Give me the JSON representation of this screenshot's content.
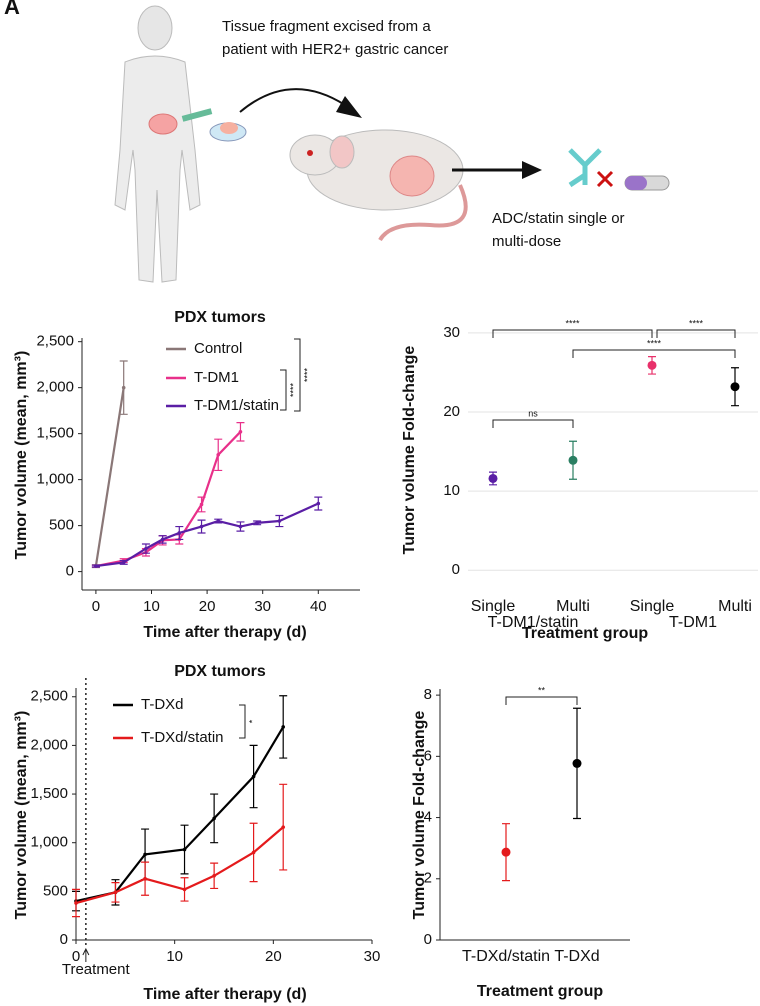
{
  "panel_label": "A",
  "illustration": {
    "caption_top": [
      "Tissue fragment excised from a",
      "patient with HER2+ gastric cancer"
    ],
    "caption_bottom": [
      "ADC/statin single or",
      "multi-dose"
    ]
  },
  "chart_data": [
    {
      "type": "line",
      "title": "PDX tumors",
      "x_label": "Time after therapy (d)",
      "y_label": "Tumor volume (mean, mm³)",
      "xlim": [
        -2.5,
        47.5
      ],
      "ylim": [
        -200,
        2540
      ],
      "xticks": [
        0,
        10,
        20,
        30,
        40
      ],
      "yticks": [
        0,
        500,
        {
          "value": 1000,
          "label": "1,000"
        },
        {
          "value": 1500,
          "label": "1,500"
        },
        {
          "value": 2000,
          "label": "2,000"
        },
        {
          "value": 2500,
          "label": "2,500"
        }
      ],
      "series": [
        {
          "name": "Control",
          "color": "#8a7777",
          "x": [
            0,
            5
          ],
          "values": [
            60,
            2000
          ],
          "errors": [
            15,
            290
          ]
        },
        {
          "name": "T-DM1",
          "color": "#e8308a",
          "x": [
            0,
            5,
            9,
            12,
            15,
            19,
            22,
            26
          ],
          "values": [
            60,
            120,
            210,
            340,
            350,
            730,
            1270,
            1520
          ],
          "errors": [
            10,
            20,
            40,
            50,
            50,
            80,
            170,
            100
          ]
        },
        {
          "name": "T-DM1/statin",
          "color": "#5a1ea5",
          "x": [
            0,
            5,
            9,
            12,
            15,
            19,
            22,
            26,
            29,
            33,
            40
          ],
          "values": [
            60,
            100,
            250,
            350,
            420,
            490,
            550,
            490,
            530,
            550,
            740
          ],
          "errors": [
            10,
            20,
            50,
            40,
            70,
            70,
            20,
            50,
            20,
            60,
            70
          ]
        }
      ],
      "annotations": [
        "****",
        "****"
      ]
    },
    {
      "type": "point",
      "x_label": "Treatment group",
      "y_label": "Tumor volume Fold-change",
      "categories": [
        "Single",
        "Multi",
        "Single",
        "Multi"
      ],
      "groups": [
        "T-DM1/statin",
        "T-DM1"
      ],
      "values": [
        11.6,
        13.9,
        25.9,
        23.2
      ],
      "errors": [
        0.8,
        2.4,
        1.1,
        2.4
      ],
      "colors": [
        "#5a1ea5",
        "#2a7f62",
        "#e8306a",
        "#000000"
      ],
      "ylim": [
        -2.5,
        31
      ],
      "yticks": [
        0,
        10,
        20,
        30
      ],
      "grid": true,
      "annotations": [
        "****",
        "****",
        "****",
        "ns"
      ]
    },
    {
      "type": "line",
      "title": "PDX tumors",
      "x_label": "Time after therapy (d)",
      "y_label": "Tumor volume (mean, mm³)",
      "xlim": [
        0,
        30
      ],
      "ylim": [
        0,
        2590
      ],
      "xticks": [
        0,
        10,
        20,
        30
      ],
      "yticks": [
        0,
        500,
        {
          "value": 1000,
          "label": "1,000"
        },
        {
          "value": 1500,
          "label": "1,500"
        },
        {
          "value": 2000,
          "label": "2,000"
        },
        {
          "value": 2500,
          "label": "2,500"
        }
      ],
      "series": [
        {
          "name": "T-DXd",
          "color": "#000000",
          "x": [
            0,
            4,
            7,
            11,
            14,
            18,
            21
          ],
          "values": [
            400,
            490,
            880,
            930,
            1250,
            1680,
            2190
          ],
          "errors": [
            100,
            130,
            260,
            250,
            250,
            320,
            320
          ]
        },
        {
          "name": "T-DXd/statin",
          "color": "#e41a1c",
          "x": [
            0,
            4,
            7,
            11,
            14,
            18,
            21
          ],
          "values": [
            380,
            490,
            630,
            520,
            660,
            900,
            1160
          ],
          "errors": [
            140,
            100,
            170,
            120,
            130,
            300,
            440
          ]
        }
      ],
      "treatment": {
        "label": "Treatment",
        "x": 1
      },
      "annotations": [
        "*"
      ]
    },
    {
      "type": "point",
      "x_label": "Treatment group",
      "y_label": "Tumor volume Fold-change",
      "categories": [
        "T-DXd/statin",
        "T-DXd"
      ],
      "values": [
        2.87,
        5.77
      ],
      "errors": [
        0.93,
        1.8
      ],
      "colors": [
        "#e41a1c",
        "#000000"
      ],
      "ylim": [
        0,
        8.2
      ],
      "yticks": [
        0,
        2,
        4,
        6,
        8
      ],
      "grid": false,
      "annotations": [
        "**"
      ]
    }
  ]
}
